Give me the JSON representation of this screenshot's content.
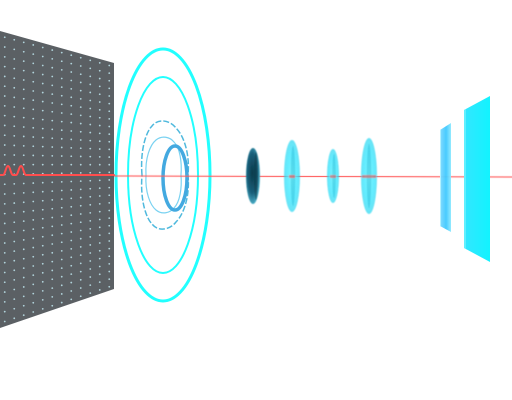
{
  "scene": {
    "background": "#ffffff",
    "colors": {
      "panel": "#5b6064",
      "panel_dots": "#bfe6ef",
      "cyan": "#22ffff",
      "cyan_dark": "#00b7c7",
      "beam": "#ff4d4d",
      "beam_glow": "#ff9a9a",
      "lens_dark": "#1a5f7a"
    },
    "components": [
      {
        "name": "perforated-panel",
        "kind": "panel"
      },
      {
        "name": "concentric-ring-disk",
        "kind": "rings"
      },
      {
        "name": "dark-lens",
        "kind": "lens"
      },
      {
        "name": "lens-2",
        "kind": "lens"
      },
      {
        "name": "lens-3",
        "kind": "lens"
      },
      {
        "name": "lens-4",
        "kind": "lens"
      },
      {
        "name": "thin-plate",
        "kind": "plate"
      },
      {
        "name": "end-plate",
        "kind": "plate"
      }
    ]
  }
}
